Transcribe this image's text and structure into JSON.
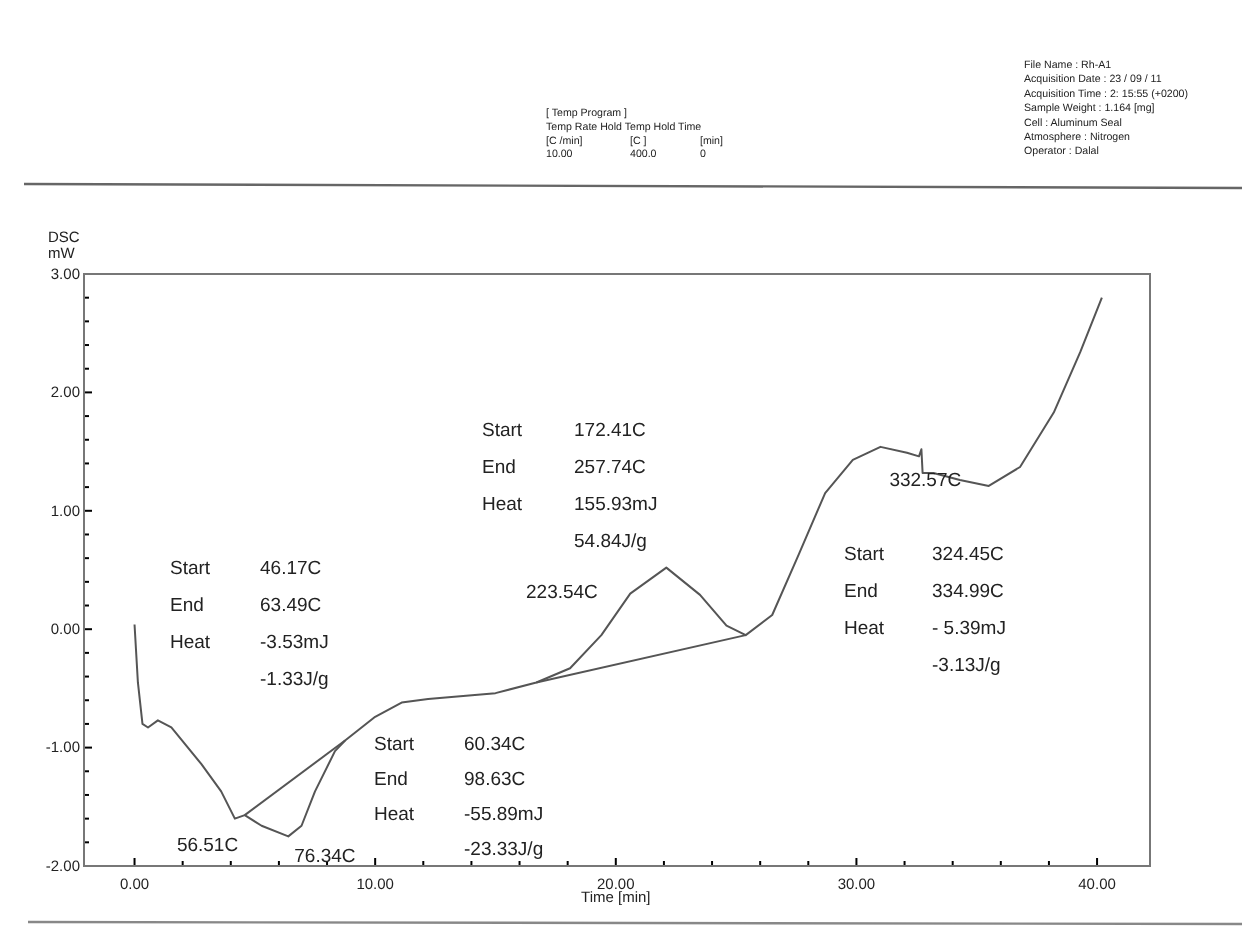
{
  "chart_data": {
    "type": "line",
    "xlabel": "Time [min]",
    "ylabel": "DSC\nmW",
    "xlim": [
      -2.1,
      42.2
    ],
    "ylim": [
      -2,
      3
    ],
    "xticks": [
      {
        "value": 0,
        "label": "0.00"
      },
      {
        "value": 2,
        "label": null
      },
      {
        "value": 4,
        "label": null
      },
      {
        "value": 6,
        "label": null
      },
      {
        "value": 8,
        "label": null
      },
      {
        "value": 10,
        "label": "10.00"
      },
      {
        "value": 12,
        "label": null
      },
      {
        "value": 14,
        "label": null
      },
      {
        "value": 16,
        "label": null
      },
      {
        "value": 18,
        "label": null
      },
      {
        "value": 20,
        "label": "20.00"
      },
      {
        "value": 22,
        "label": null
      },
      {
        "value": 24,
        "label": null
      },
      {
        "value": 26,
        "label": null
      },
      {
        "value": 28,
        "label": null
      },
      {
        "value": 30,
        "label": "30.00"
      },
      {
        "value": 32,
        "label": null
      },
      {
        "value": 34,
        "label": null
      },
      {
        "value": 36,
        "label": null
      },
      {
        "value": 38,
        "label": null
      },
      {
        "value": 40,
        "label": "40.00"
      }
    ],
    "yticks": [
      {
        "value": -2,
        "label": "-2.00"
      },
      {
        "value": -1.8,
        "label": null
      },
      {
        "value": -1.6,
        "label": null
      },
      {
        "value": -1.4,
        "label": null
      },
      {
        "value": -1.2,
        "label": null
      },
      {
        "value": -1,
        "label": "-1.00"
      },
      {
        "value": -0.8,
        "label": null
      },
      {
        "value": -0.6,
        "label": null
      },
      {
        "value": -0.4,
        "label": null
      },
      {
        "value": -0.2,
        "label": null
      },
      {
        "value": 0,
        "label": "0.00"
      },
      {
        "value": 0.2,
        "label": null
      },
      {
        "value": 0.4,
        "label": null
      },
      {
        "value": 0.6,
        "label": null
      },
      {
        "value": 0.8,
        "label": null
      },
      {
        "value": 1,
        "label": "1.00"
      },
      {
        "value": 1.2,
        "label": null
      },
      {
        "value": 1.4,
        "label": null
      },
      {
        "value": 1.6,
        "label": null
      },
      {
        "value": 1.8,
        "label": null
      },
      {
        "value": 2,
        "label": "2.00"
      },
      {
        "value": 2.2,
        "label": null
      },
      {
        "value": 2.4,
        "label": null
      },
      {
        "value": 2.6,
        "label": null
      },
      {
        "value": 2.8,
        "label": null
      },
      {
        "value": 3,
        "label": "3.00"
      }
    ],
    "grid": false,
    "marker": "none",
    "line_style": "solid",
    "series": [
      {
        "color": "#555555",
        "x": [
          0,
          0.14,
          0.33,
          0.56,
          0.97,
          1.53,
          2.78,
          3.6,
          4.17,
          4.58,
          5.28,
          6.39,
          6.94,
          7.5,
          8.33,
          8.75,
          10,
          11.1,
          12.2,
          13.9,
          15,
          16.7,
          18.1,
          19.4,
          20.6,
          22.1,
          23.5,
          24.6,
          25.4,
          26.5,
          27.6,
          28.7,
          29.85,
          31,
          32.1,
          32.6,
          32.7,
          32.75,
          33.2,
          34.3,
          35.5,
          36.8,
          38.2,
          39.3,
          40.2
        ],
        "values": [
          0.04,
          -0.45,
          -0.8,
          -0.83,
          -0.77,
          -0.83,
          -1.14,
          -1.37,
          -1.6,
          -1.57,
          -1.66,
          -1.75,
          -1.66,
          -1.37,
          -1.03,
          -0.94,
          -0.74,
          -0.62,
          -0.59,
          -0.56,
          -0.54,
          -0.45,
          -0.33,
          -0.05,
          0.3,
          0.52,
          0.29,
          0.03,
          -0.05,
          0.12,
          0.63,
          1.15,
          1.43,
          1.54,
          1.49,
          1.46,
          1.52,
          1.32,
          1.32,
          1.26,
          1.21,
          1.37,
          1.83,
          2.34,
          2.8
        ]
      },
      {
        "color": "#555555",
        "x": [
          4.58,
          8.75
        ],
        "values": [
          -1.57,
          -0.94
        ]
      },
      {
        "color": "#555555",
        "x": [
          16.7,
          25.4
        ],
        "values": [
          -0.45,
          -0.05
        ]
      }
    ],
    "annotations": [
      {
        "text": "56.51C",
        "x": 4.17,
        "y": -1.6
      },
      {
        "text": "76.34C",
        "x": 6.39,
        "y": -1.75
      },
      "223.54C",
      {
        "text": "332.57C",
        "x": 32.7,
        "y": 1.5
      },
      "Start\t46.17C\nEnd\t63.49C\nHeat\t-3.53mJ\n\t-1.33J/g",
      "Start\t172.41C\nEnd\t257.74C\nHeat\t155.93mJ\n\t54.84J/g",
      "Start\t60.34C\nEnd\t98.63C\nHeat\t-55.89mJ\n\t-23.33J/g",
      "Start\t324.45C\nEnd\t334.99C\nHeat\t- 5.39mJ\n\t-3.13J/g",
      "[ Temp Program ]\nTemp Rate Hold Temp Hold Time\n[C /min]\t[C ]\t[min]\n10.00\t400.0\t0",
      "File Name :  Rh-A1\nAcquisition Date :  23 / 09 / 11\nAcquisition Time :    2: 15:55 (+0200)\nSample Weight :  1.164 [mg]\nCell : Aluminum Seal\nAtmosphere : Nitrogen\nOperator : Dalal"
    ]
  }
}
